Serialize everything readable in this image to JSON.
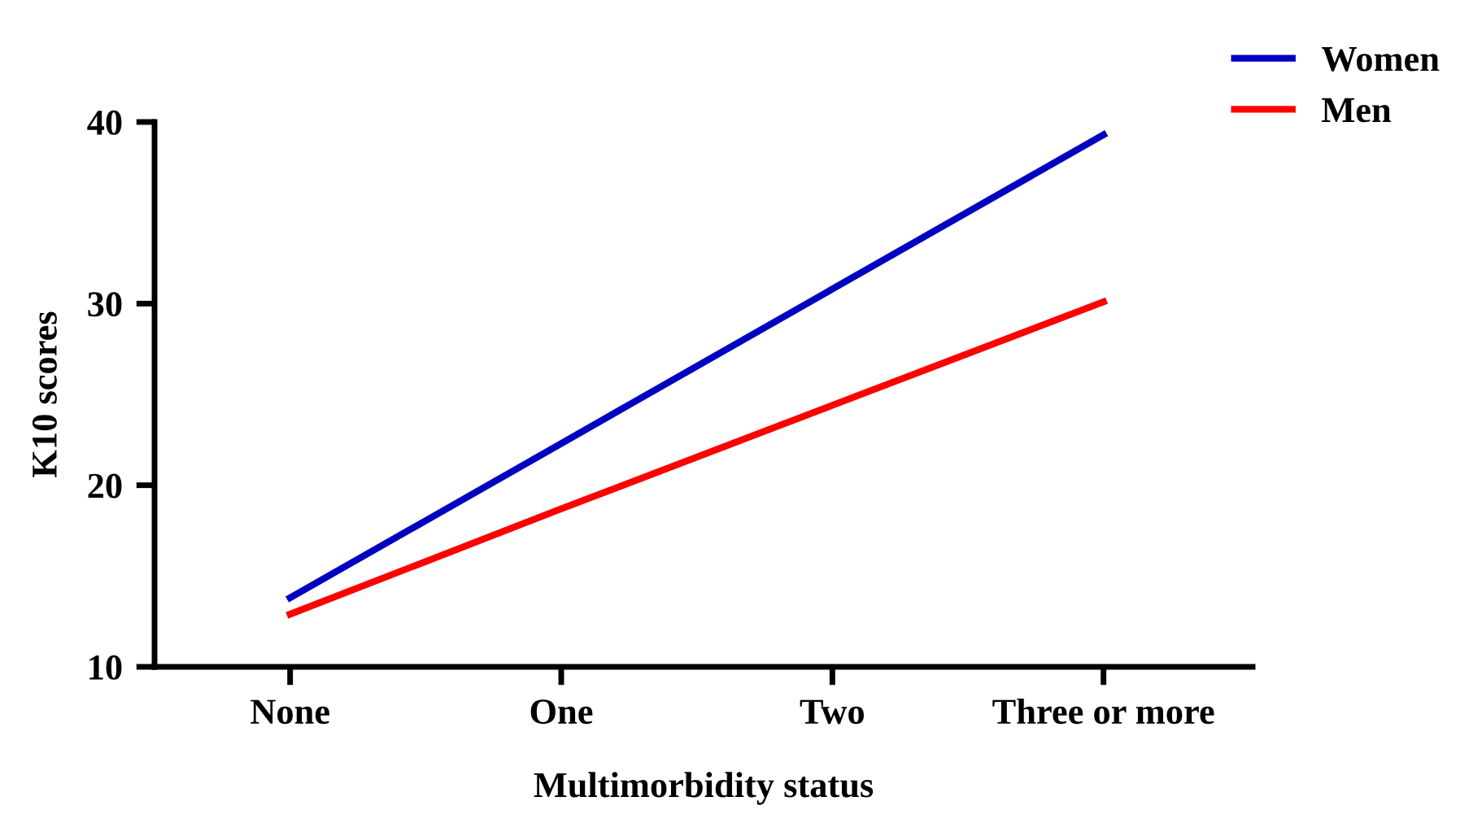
{
  "chart_data": {
    "type": "line",
    "xlabel": "Multimorbidity status",
    "ylabel": "K10 scores",
    "categories": [
      "None",
      "One",
      "Two",
      "Three or more"
    ],
    "series": [
      {
        "name": "Women",
        "color": "#0000c0",
        "values": [
          13.8,
          22.3,
          30.8,
          39.3
        ]
      },
      {
        "name": "Men",
        "color": "#ff0000",
        "values": [
          12.9,
          18.7,
          24.4,
          30.1
        ]
      }
    ],
    "ylim": [
      10,
      40
    ],
    "yticks": [
      10,
      20,
      30,
      40
    ],
    "grid": false,
    "legend": "top right",
    "marker": "none",
    "line_style": "solid"
  }
}
